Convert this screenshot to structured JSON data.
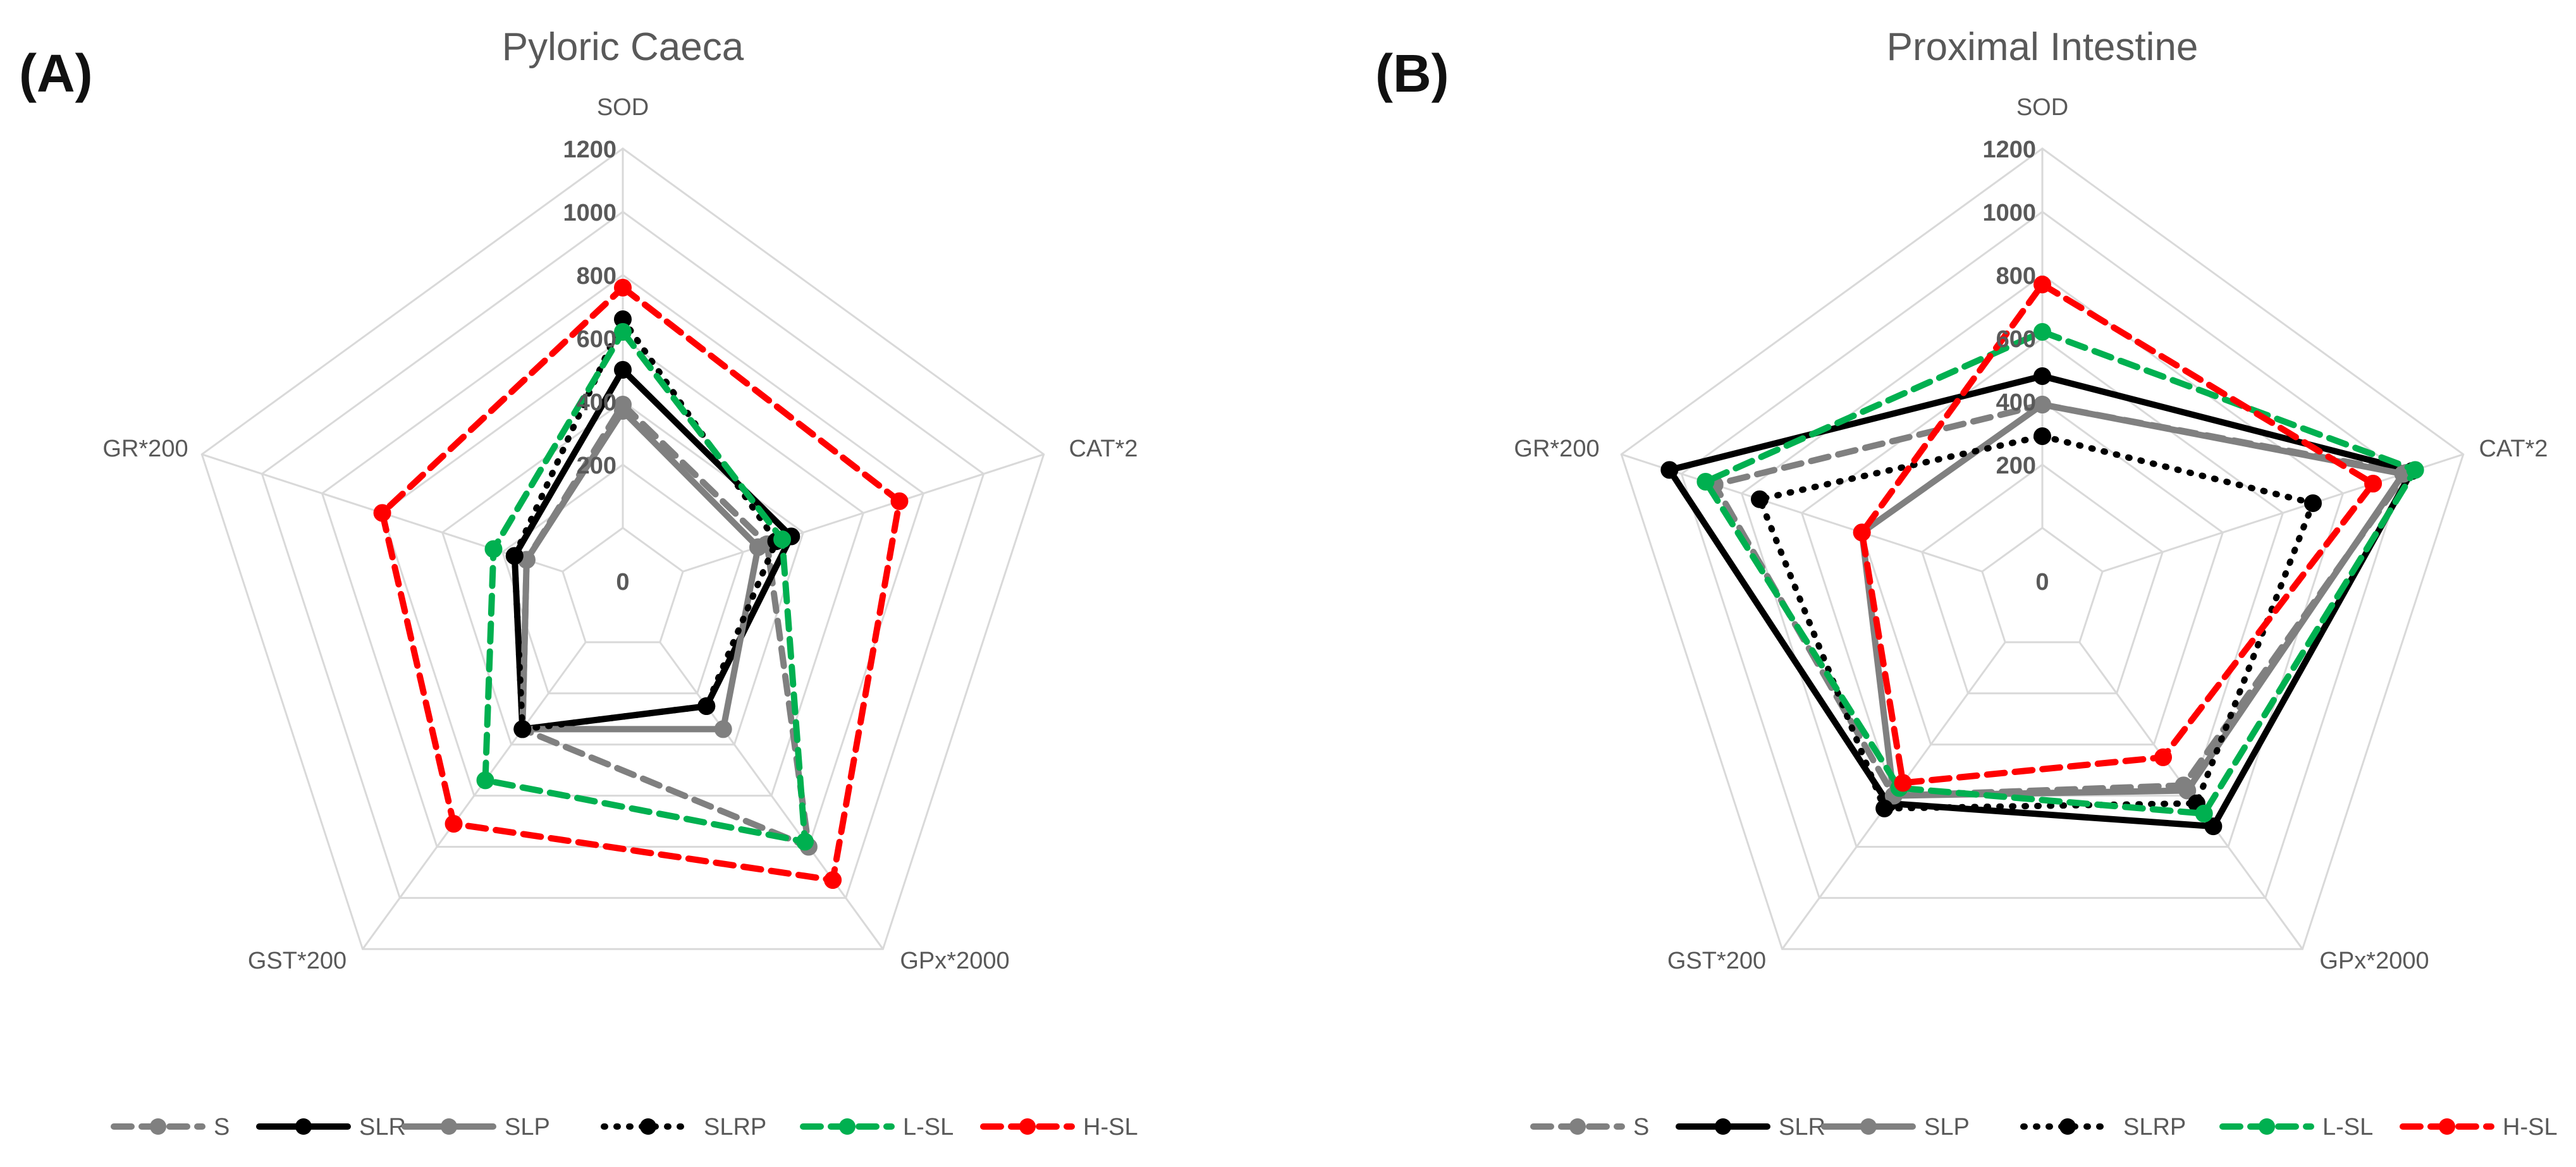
{
  "chart_data": [
    {
      "panel": "(A)",
      "type": "radar",
      "title": "Pyloric Caeca",
      "axes": [
        "SOD",
        "CAT*2",
        "GPx*2000",
        "GST*200",
        "GR*200"
      ],
      "rlim": [
        0,
        1200
      ],
      "ticks": [
        "0",
        "200",
        "400",
        "600",
        "800",
        "1000",
        "1200"
      ],
      "series": [
        {
          "name": "S",
          "values": [
            390,
            280,
            800,
            340,
            120
          ]
        },
        {
          "name": "SLR",
          "values": [
            500,
            360,
            250,
            340,
            160
          ]
        },
        {
          "name": "SLP",
          "values": [
            370,
            250,
            340,
            340,
            120
          ]
        },
        {
          "name": "SLRP",
          "values": [
            660,
            310,
            250,
            340,
            160
          ]
        },
        {
          "name": "L-SL",
          "values": [
            620,
            330,
            780,
            540,
            230
          ]
        },
        {
          "name": "H-SL",
          "values": [
            760,
            720,
            930,
            710,
            600
          ]
        }
      ]
    },
    {
      "panel": "(B)",
      "type": "radar",
      "title": "Proximal Intestine",
      "axes": [
        "SOD",
        "CAT*2",
        "GPx*2000",
        "GST*200",
        "GR*200"
      ],
      "rlim": [
        0,
        1200
      ],
      "ticks": [
        "0",
        "200",
        "400",
        "600",
        "800",
        "1000",
        "1200"
      ],
      "series": [
        {
          "name": "S",
          "values": [
            390,
            1010,
            560,
            600,
            890
          ]
        },
        {
          "name": "SLR",
          "values": [
            480,
            1030,
            720,
            630,
            1040
          ]
        },
        {
          "name": "SLP",
          "values": [
            390,
            1000,
            580,
            600,
            400
          ]
        },
        {
          "name": "SLRP",
          "values": [
            290,
            700,
            630,
            650,
            740
          ]
        },
        {
          "name": "L-SL",
          "values": [
            620,
            1040,
            670,
            570,
            920
          ]
        },
        {
          "name": "H-SL",
          "values": [
            770,
            900,
            450,
            550,
            400
          ]
        }
      ]
    }
  ],
  "legend": [
    {
      "name": "S",
      "color": "#808080",
      "style": "dash"
    },
    {
      "name": "SLR",
      "color": "#000000",
      "style": "solid"
    },
    {
      "name": "SLP",
      "color": "#808080",
      "style": "solid"
    },
    {
      "name": "SLRP",
      "color": "#000000",
      "style": "dot"
    },
    {
      "name": "L-SL",
      "color": "#00b050",
      "style": "dash"
    },
    {
      "name": "H-SL",
      "color": "#ff0000",
      "style": "dash"
    }
  ]
}
